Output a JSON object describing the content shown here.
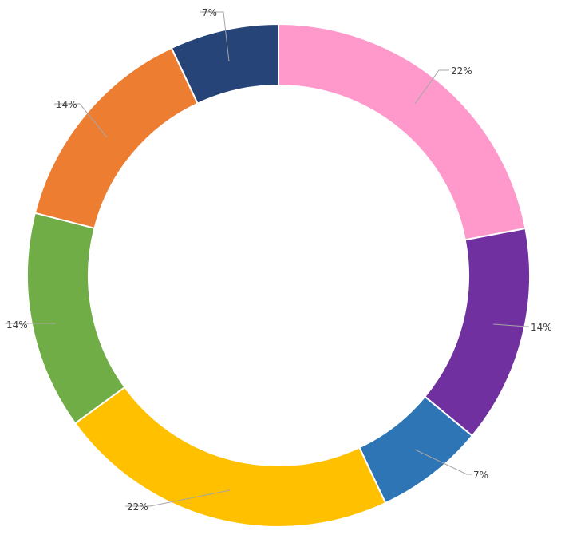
{
  "chart_data": {
    "type": "pie",
    "variant": "donut",
    "slices": [
      {
        "value": 22,
        "label": "22%",
        "color": "#FF99CC"
      },
      {
        "value": 14,
        "label": "14%",
        "color": "#7030A0"
      },
      {
        "value": 7,
        "label": "7%",
        "color": "#2E75B6"
      },
      {
        "value": 22,
        "label": "22%",
        "color": "#FFC000"
      },
      {
        "value": 14,
        "label": "14%",
        "color": "#70AD47"
      },
      {
        "value": 14,
        "label": "14%",
        "color": "#ED7D31"
      },
      {
        "value": 7,
        "label": "7%",
        "color": "#264478"
      }
    ],
    "start": "12 o'clock",
    "direction": "clockwise",
    "legend": "none"
  }
}
